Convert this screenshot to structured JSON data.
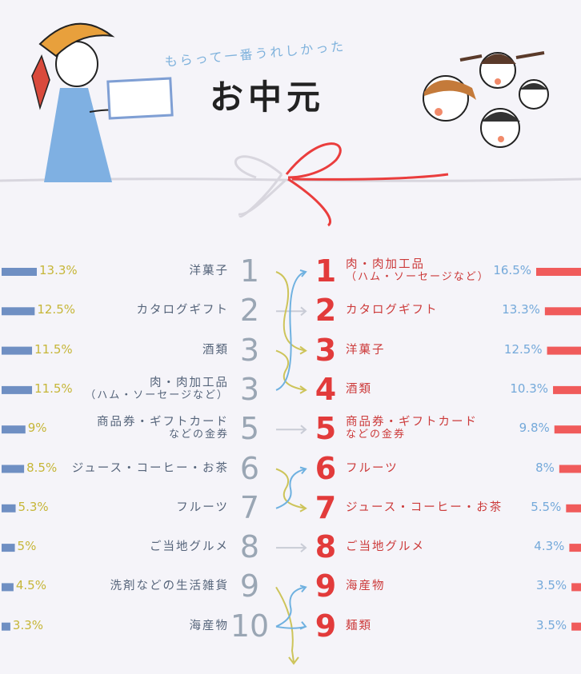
{
  "header": {
    "subtitle": "もらって一番うれしかった",
    "title": "お中元"
  },
  "colors": {
    "left_bar": "#6f8fc3",
    "right_bar": "#f05b5b",
    "left_pct": "#c6b638",
    "right_pct": "#74a9da",
    "left_text": "#55647a",
    "right_text": "#cc3a3a",
    "ribbon": "#ea3d3d",
    "arrow_up": "#6fb1e0",
    "arrow_down": "#cdc45a"
  },
  "chart_data": [
    {
      "type": "bar",
      "orientation": "horizontal",
      "ranks": [
        "1",
        "2",
        "3",
        "3",
        "5",
        "6",
        "7",
        "8",
        "9",
        "10"
      ],
      "categories": [
        "洋菓子",
        "カタログギフト",
        "酒類",
        "肉・肉加工品",
        "商品券・ギフトカード など の金券",
        "ジュース・コーヒー・お茶",
        "フルーツ",
        "ご当地グルメ",
        "洗剤などの生活雑貨",
        "海産物"
      ],
      "values": [
        13.3,
        12.5,
        11.5,
        11.5,
        9,
        8.5,
        5.3,
        5,
        4.5,
        3.3
      ],
      "value_labels": [
        "13.3%",
        "12.5%",
        "11.5%",
        "11.5%",
        "9%",
        "8.5%",
        "5.3%",
        "5%",
        "4.5%",
        "3.3%"
      ]
    },
    {
      "type": "bar",
      "orientation": "horizontal",
      "ranks": [
        "1",
        "2",
        "3",
        "4",
        "5",
        "6",
        "7",
        "8",
        "9",
        "9"
      ],
      "categories": [
        "肉・肉加工品",
        "カタログギフト",
        "洋菓子",
        "酒類",
        "商品券・ギフトカード など の金券",
        "フルーツ",
        "ジュース・コーヒー・お茶",
        "ご当地グルメ",
        "海産物",
        "麺類"
      ],
      "values": [
        16.5,
        13.3,
        12.5,
        10.3,
        9.8,
        8,
        5.5,
        4.3,
        3.5,
        3.5
      ],
      "value_labels": [
        "16.5%",
        "13.3%",
        "12.5%",
        "10.3%",
        "9.8%",
        "8%",
        "5.5%",
        "4.3%",
        "3.5%",
        "3.5%"
      ]
    }
  ],
  "left": [
    {
      "rank": "1",
      "label": "洋菓子",
      "sub": ""
    },
    {
      "rank": "2",
      "label": "カタログギフト",
      "sub": ""
    },
    {
      "rank": "3",
      "label": "酒類",
      "sub": ""
    },
    {
      "rank": "3",
      "label": "肉・肉加工品",
      "sub": "（ハム・ソーセージなど）"
    },
    {
      "rank": "5",
      "label": "商品券・ギフトカード",
      "sub": "などの金券"
    },
    {
      "rank": "6",
      "label": "ジュース・コーヒー・お茶",
      "sub": ""
    },
    {
      "rank": "7",
      "label": "フルーツ",
      "sub": ""
    },
    {
      "rank": "8",
      "label": "ご当地グルメ",
      "sub": ""
    },
    {
      "rank": "9",
      "label": "洗剤などの生活雑貨",
      "sub": ""
    },
    {
      "rank": "10",
      "label": "海産物",
      "sub": ""
    }
  ],
  "right": [
    {
      "rank": "1",
      "label": "肉・肉加工品",
      "sub": "（ハム・ソーセージなど）"
    },
    {
      "rank": "2",
      "label": "カタログギフト",
      "sub": ""
    },
    {
      "rank": "3",
      "label": "洋菓子",
      "sub": ""
    },
    {
      "rank": "4",
      "label": "酒類",
      "sub": ""
    },
    {
      "rank": "5",
      "label": "商品券・ギフトカード",
      "sub": "などの金券"
    },
    {
      "rank": "6",
      "label": "フルーツ",
      "sub": ""
    },
    {
      "rank": "7",
      "label": "ジュース・コーヒー・お茶",
      "sub": ""
    },
    {
      "rank": "8",
      "label": "ご当地グルメ",
      "sub": ""
    },
    {
      "rank": "9",
      "label": "海産物",
      "sub": ""
    },
    {
      "rank": "9",
      "label": "麺類",
      "sub": ""
    }
  ],
  "arrows": [
    "swap",
    "same",
    "swap",
    "swap",
    "same",
    "swap",
    "swap",
    "same",
    "up",
    "down"
  ],
  "icons": [
    "girl-with-gift-illustration",
    "children-faces-illustration",
    "ribbon-bow-illustration"
  ]
}
